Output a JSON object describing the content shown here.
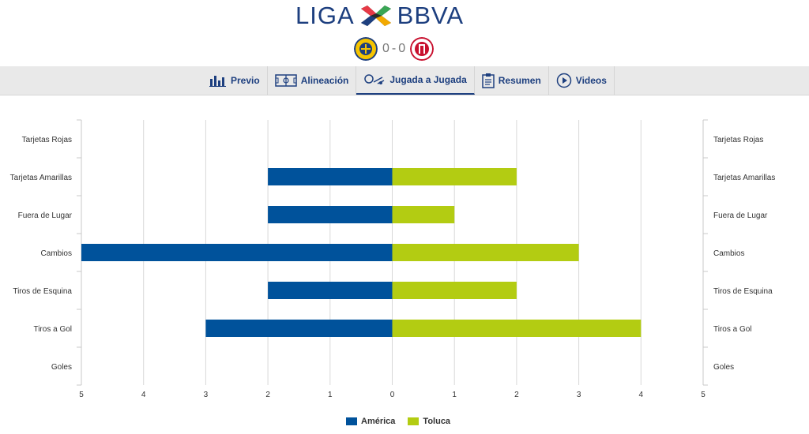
{
  "header": {
    "logo_left": "LIGA",
    "logo_right": "BBVA",
    "score_home": "0",
    "score_sep": "-",
    "score_away": "0"
  },
  "tabs": [
    {
      "label": "Previo",
      "icon": "bar-chart-icon"
    },
    {
      "label": "Alineación",
      "icon": "field-icon"
    },
    {
      "label": "Jugada a Jugada",
      "icon": "play-by-play-icon",
      "active": true
    },
    {
      "label": "Resumen",
      "icon": "clipboard-icon"
    },
    {
      "label": "Videos",
      "icon": "play-circle-icon"
    }
  ],
  "colors": {
    "america": "#00529b",
    "toluca": "#b3cc12",
    "brand": "#1d3f7f"
  },
  "chart_data": {
    "type": "bar",
    "orientation": "horizontal-diverging",
    "categories": [
      "Tarjetas Rojas",
      "Tarjetas Amarillas",
      "Fuera de Lugar",
      "Cambios",
      "Tiros de Esquina",
      "Tiros a Gol",
      "Goles"
    ],
    "series": [
      {
        "name": "América",
        "values": [
          0,
          2,
          2,
          5,
          2,
          3,
          0
        ],
        "color": "#00529b",
        "side": "left"
      },
      {
        "name": "Toluca",
        "values": [
          0,
          2,
          1,
          3,
          2,
          4,
          0
        ],
        "color": "#b3cc12",
        "side": "right"
      }
    ],
    "x_ticks": [
      "5",
      "4",
      "3",
      "2",
      "1",
      "0",
      "1",
      "2",
      "3",
      "4",
      "5"
    ],
    "xlim": [
      -5,
      5
    ],
    "grid": true,
    "legend_position": "bottom"
  }
}
